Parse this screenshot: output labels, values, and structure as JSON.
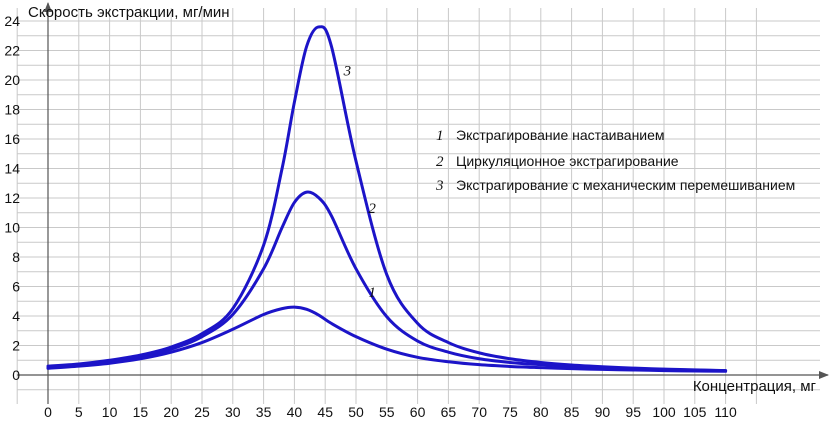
{
  "chart_data": {
    "type": "line",
    "title": "",
    "ylabel": "Скорость экстракции, мг/мин",
    "xlabel": "Концентрация, мг",
    "xlim": [
      -5,
      115
    ],
    "ylim": [
      -1.5,
      24.8
    ],
    "x_ticks": [
      "0",
      "5",
      "10",
      "15",
      "20",
      "25",
      "30",
      "35",
      "40",
      "45",
      "50",
      "55",
      "60",
      "65",
      "70",
      "75",
      "80",
      "85",
      "90",
      "95",
      "100",
      "105",
      "110"
    ],
    "y_ticks": [
      "0",
      "2",
      "4",
      "6",
      "8",
      "10",
      "12",
      "14",
      "16",
      "18",
      "20",
      "22",
      "24"
    ],
    "grid": true,
    "line_color": "#1c14c8",
    "x": [
      0,
      5,
      10,
      15,
      20,
      25,
      30,
      35,
      38,
      40,
      42,
      44,
      46,
      50,
      55,
      60,
      65,
      70,
      75,
      80,
      85,
      90,
      95,
      100,
      105,
      110
    ],
    "series": [
      {
        "label": "1",
        "legend": "Экстрагирование настаиванием",
        "values": [
          0.45,
          0.6,
          0.8,
          1.1,
          1.55,
          2.2,
          3.1,
          4.1,
          4.5,
          4.6,
          4.45,
          4.05,
          3.5,
          2.6,
          1.75,
          1.2,
          0.9,
          0.7,
          0.58,
          0.5,
          0.43,
          0.38,
          0.34,
          0.3,
          0.27,
          0.25
        ]
      },
      {
        "label": "2",
        "legend": "Циркуляционное экстрагирование",
        "values": [
          0.5,
          0.65,
          0.9,
          1.2,
          1.75,
          2.6,
          4.1,
          7.2,
          10.0,
          11.7,
          12.4,
          12.0,
          10.8,
          7.2,
          3.95,
          2.3,
          1.55,
          1.1,
          0.85,
          0.7,
          0.58,
          0.5,
          0.43,
          0.38,
          0.33,
          0.3
        ]
      },
      {
        "label": "3",
        "legend": "Экстрагирование с механическим перемешиванием",
        "values": [
          0.6,
          0.75,
          1.0,
          1.35,
          1.9,
          2.8,
          4.5,
          8.8,
          14.0,
          18.5,
          22.3,
          23.6,
          22.3,
          14.5,
          6.8,
          3.5,
          2.2,
          1.5,
          1.1,
          0.85,
          0.68,
          0.56,
          0.47,
          0.4,
          0.35,
          0.3
        ]
      }
    ]
  }
}
